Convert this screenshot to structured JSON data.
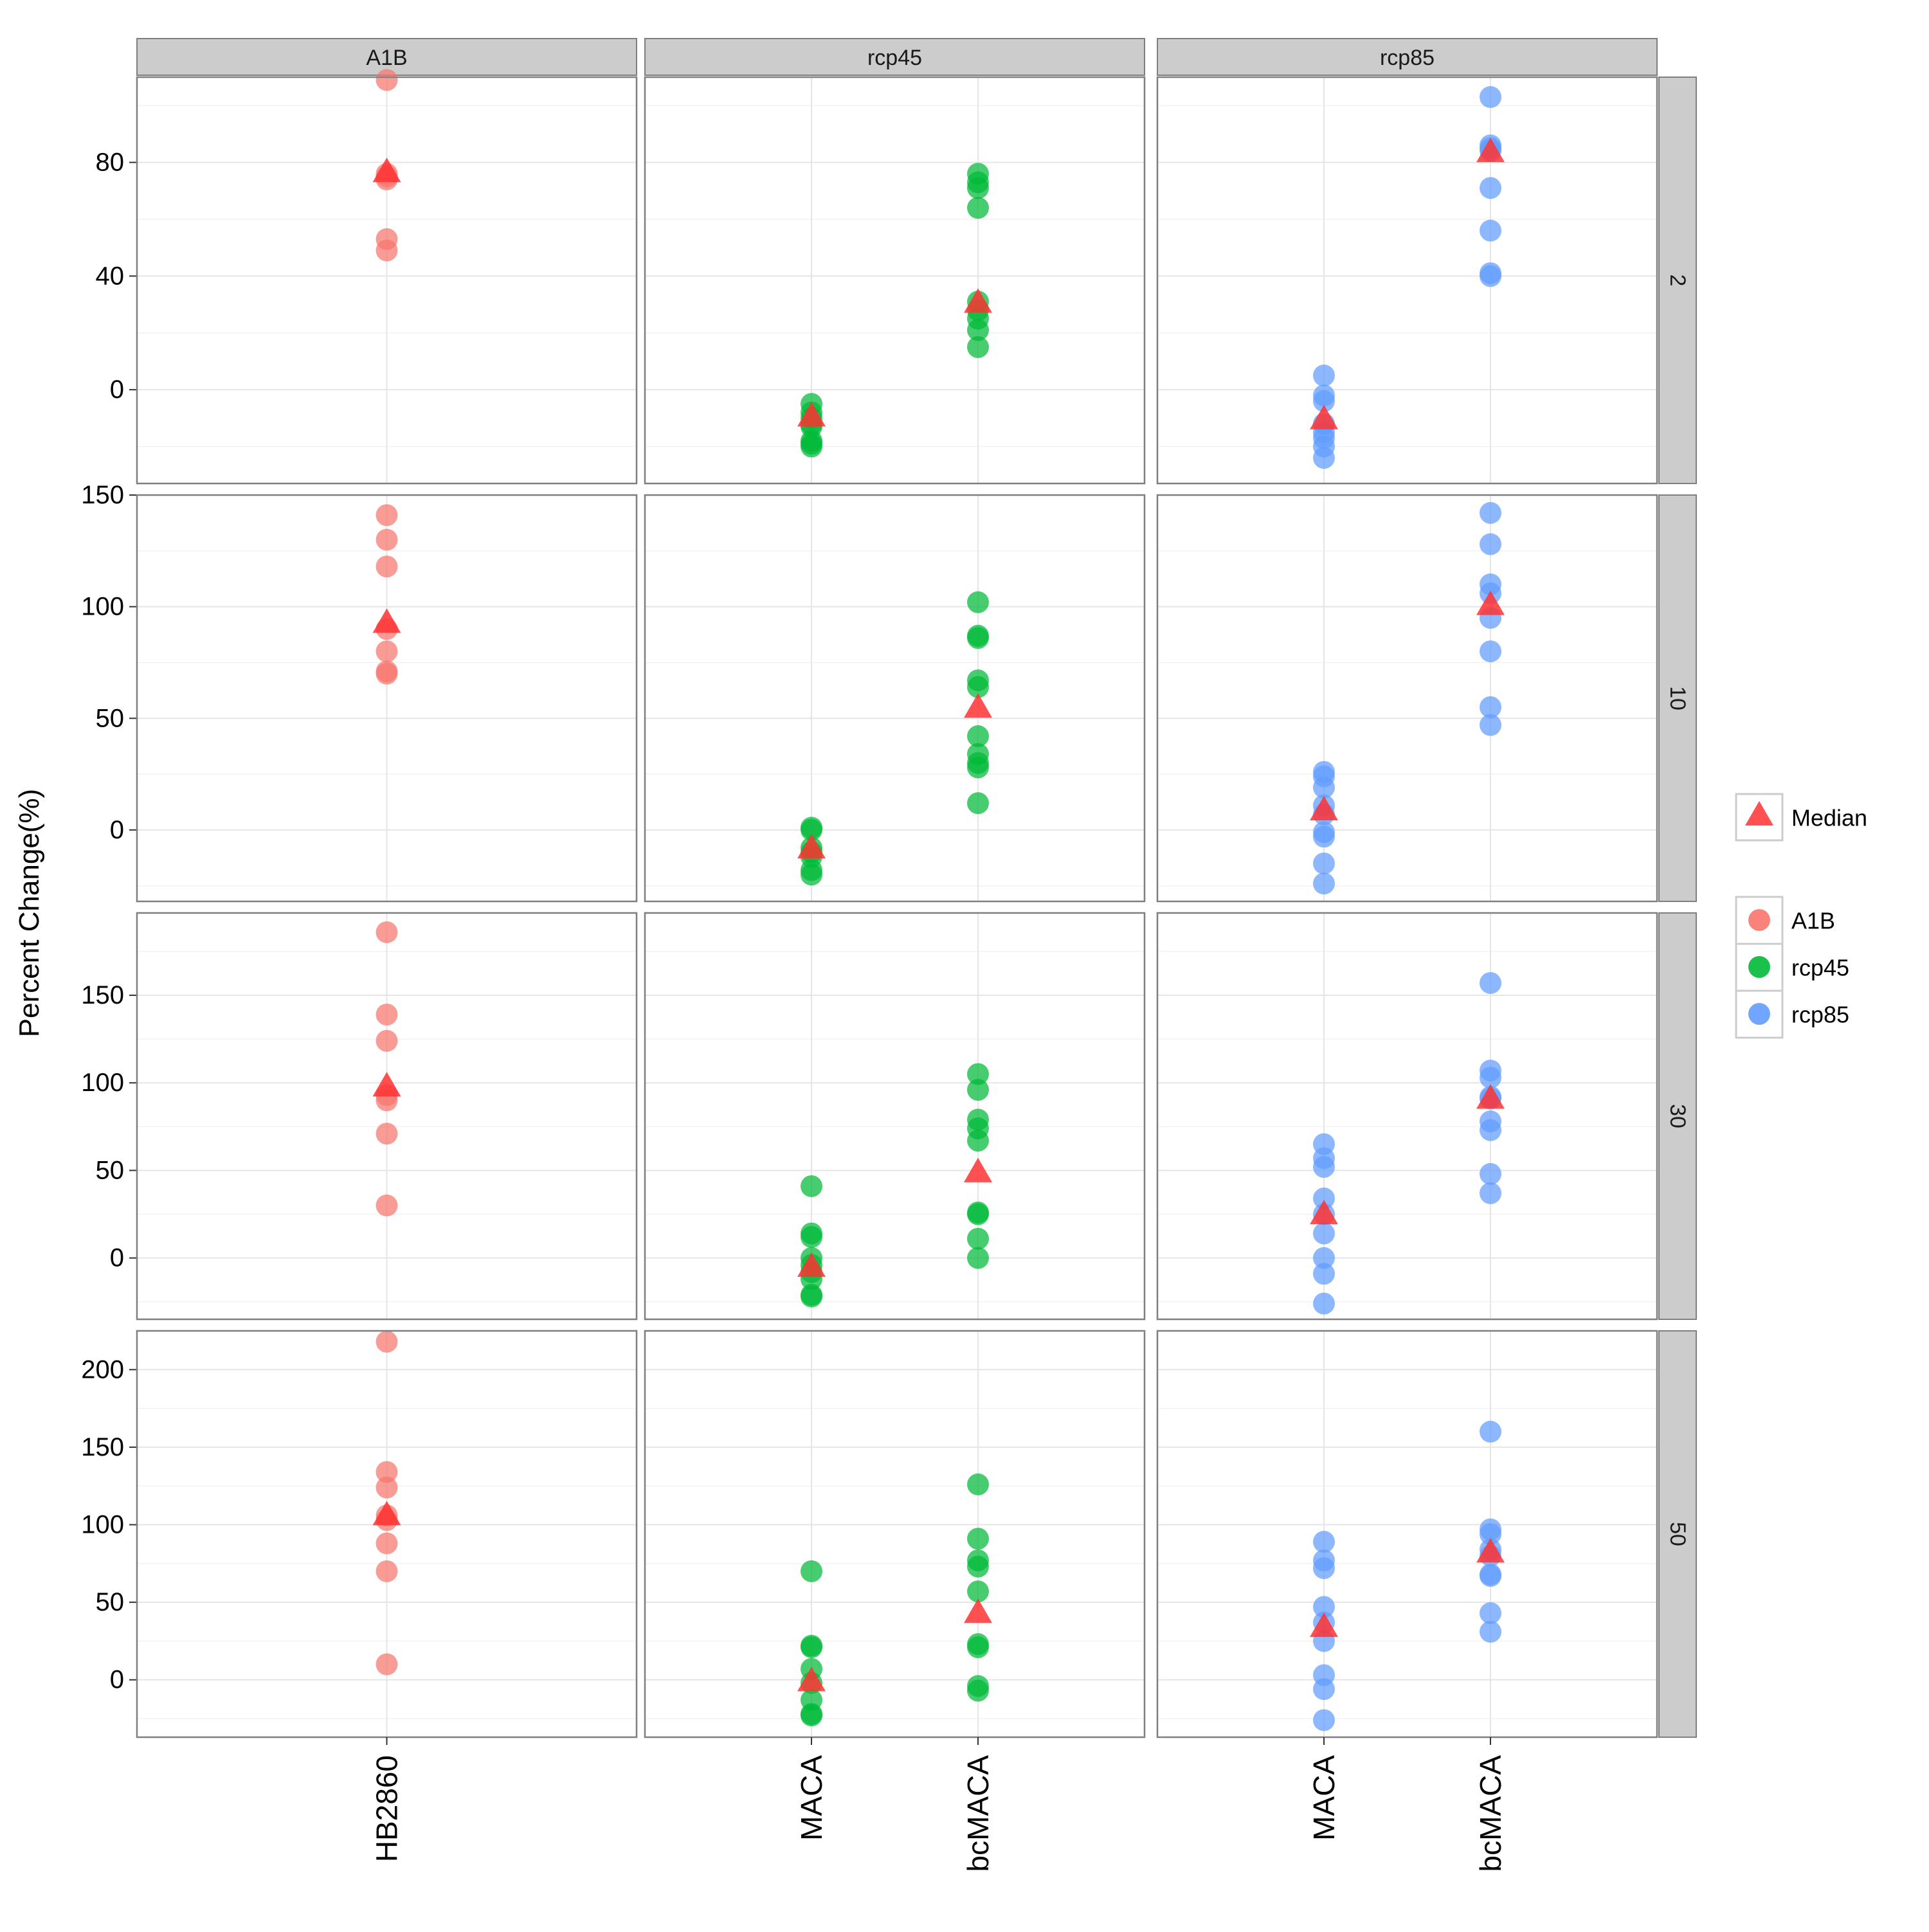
{
  "chart_data": {
    "type": "scatter",
    "title": "",
    "xlabel": "",
    "ylabel": "Percent Change(%)",
    "facet_columns": [
      "A1B",
      "rcp45",
      "rcp85"
    ],
    "facet_rows": [
      "2",
      "10",
      "30",
      "50"
    ],
    "column_categories": {
      "A1B": [
        "HB2860"
      ],
      "rcp45": [
        "MACA",
        "bcMACA"
      ],
      "rcp85": [
        "MACA",
        "bcMACA"
      ]
    },
    "rows": [
      {
        "label": "2",
        "ylim": [
          -33,
          110
        ],
        "yticks": [
          0,
          40,
          80
        ],
        "cells": {
          "A1B": [
            {
              "category": "HB2860",
              "values": [
                109,
                76,
                75,
                74,
                53,
                49
              ],
              "median": 76
            }
          ],
          "rcp45": [
            {
              "category": "MACA",
              "values": [
                -5,
                -8,
                -10,
                -12,
                -13,
                -18,
                -19,
                -20
              ],
              "median": -10
            },
            {
              "category": "bcMACA",
              "values": [
                76,
                73,
                71,
                64,
                31,
                28,
                25,
                21,
                15
              ],
              "median": 30
            }
          ],
          "rcp85": [
            {
              "category": "MACA",
              "values": [
                5,
                -2,
                -4,
                -12,
                -15,
                -17,
                -20,
                -24
              ],
              "median": -11
            },
            {
              "category": "bcMACA",
              "values": [
                103,
                86,
                85,
                84,
                71,
                56,
                41,
                40
              ],
              "median": 83
            }
          ]
        }
      },
      {
        "label": "10",
        "ylim": [
          -32,
          150
        ],
        "yticks": [
          0,
          50,
          100,
          150
        ],
        "cells": {
          "A1B": [
            {
              "category": "HB2860",
              "values": [
                141,
                130,
                118,
                90,
                80,
                71,
                70
              ],
              "median": 92
            }
          ],
          "rcp45": [
            {
              "category": "MACA",
              "values": [
                1,
                0,
                -8,
                -10,
                -12,
                -18,
                -20
              ],
              "median": -9
            },
            {
              "category": "bcMACA",
              "values": [
                102,
                87,
                86,
                67,
                64,
                42,
                34,
                30,
                28,
                12
              ],
              "median": 54
            }
          ],
          "rcp85": [
            {
              "category": "MACA",
              "values": [
                26,
                24,
                19,
                11,
                7,
                -1,
                -3,
                -15,
                -24
              ],
              "median": 8
            },
            {
              "category": "bcMACA",
              "values": [
                142,
                128,
                110,
                106,
                95,
                80,
                55,
                47
              ],
              "median": 100
            }
          ]
        }
      },
      {
        "label": "30",
        "ylim": [
          -35,
          197
        ],
        "yticks": [
          0,
          50,
          100,
          150
        ],
        "cells": {
          "A1B": [
            {
              "category": "HB2860",
              "values": [
                186,
                139,
                124,
                93,
                90,
                71,
                30
              ],
              "median": 97
            }
          ],
          "rcp45": [
            {
              "category": "MACA",
              "values": [
                41,
                14,
                12,
                0,
                -4,
                -8,
                -12,
                -21,
                -22
              ],
              "median": -6
            },
            {
              "category": "bcMACA",
              "values": [
                105,
                96,
                79,
                74,
                67,
                26,
                25,
                11,
                0
              ],
              "median": 48
            }
          ],
          "rcp85": [
            {
              "category": "MACA",
              "values": [
                65,
                57,
                52,
                34,
                25,
                14,
                0,
                -9,
                -26
              ],
              "median": 24
            },
            {
              "category": "bcMACA",
              "values": [
                157,
                107,
                103,
                92,
                91,
                78,
                73,
                48,
                37
              ],
              "median": 90
            }
          ]
        }
      },
      {
        "label": "50",
        "ylim": [
          -37,
          225
        ],
        "yticks": [
          0,
          50,
          100,
          150,
          200
        ],
        "cells": {
          "A1B": [
            {
              "category": "HB2860",
              "values": [
                218,
                134,
                124,
                106,
                103,
                88,
                70,
                10
              ],
              "median": 105
            }
          ],
          "rcp45": [
            {
              "category": "MACA",
              "values": [
                70,
                22,
                21,
                7,
                -2,
                -13,
                -22,
                -23
              ],
              "median": -2
            },
            {
              "category": "bcMACA",
              "values": [
                126,
                91,
                77,
                73,
                57,
                23,
                21,
                -4,
                -7
              ],
              "median": 42
            }
          ],
          "rcp85": [
            {
              "category": "MACA",
              "values": [
                89,
                77,
                72,
                47,
                37,
                25,
                3,
                -6,
                -26
              ],
              "median": 33
            },
            {
              "category": "bcMACA",
              "values": [
                160,
                97,
                94,
                84,
                80,
                68,
                67,
                43,
                31
              ],
              "median": 81
            }
          ]
        }
      }
    ],
    "legend": {
      "position": "right",
      "median_label": "Median",
      "series": [
        "A1B",
        "rcp45",
        "rcp85"
      ]
    },
    "colors": {
      "A1B": "#F8766D",
      "rcp45": "#00BA38",
      "rcp85": "#619CFF",
      "median": "#FF3333",
      "strip_fill": "#CCCCCC",
      "grid_major": "#E5E5E5",
      "grid_minor": "#F2F2F2",
      "panel_border": "#7F7F7F"
    },
    "grid": true
  }
}
